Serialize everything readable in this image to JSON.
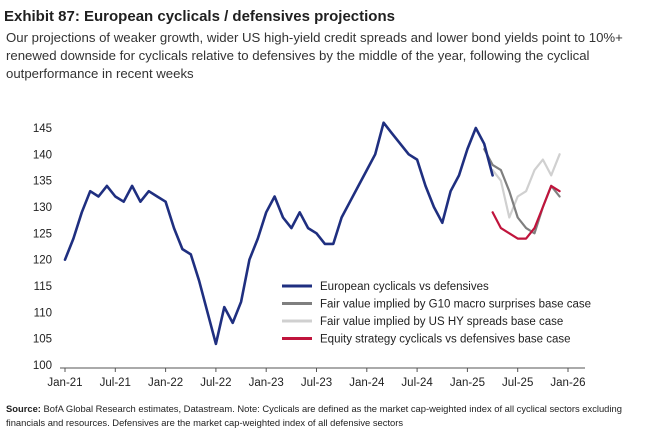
{
  "title": "Exhibit 87: European cyclicals / defensives projections",
  "subtitle": "Our projections of weaker growth, wider US high-yield credit spreads and lower bond yields point to 10%+ renewed downside for cyclicals relative to defensives by the middle of the year, following the cyclical outperformance in recent weeks",
  "source_label": "Source:",
  "source_text": "BofA Global Research estimates, Datastream. Note: Cyclicals are defined as the market cap-weighted index of all cyclical sectors excluding financials and resources. Defensives are the market cap-weighted index of all defensive sectors",
  "chart_data": {
    "type": "line",
    "title": "",
    "xlabel": "",
    "ylabel": "",
    "ylim": [
      100,
      145
    ],
    "yticks": [
      100,
      105,
      110,
      115,
      120,
      125,
      130,
      135,
      140,
      145
    ],
    "xticks": [
      "Jan-21",
      "Jul-21",
      "Jan-22",
      "Jul-22",
      "Jan-23",
      "Jul-23",
      "Jan-24",
      "Jul-24",
      "Jan-25",
      "Jul-25",
      "Jan-26"
    ],
    "grid": false,
    "legend_position": "bottom-right",
    "series": [
      {
        "name": "European cyclicals vs defensives",
        "color": "#1f2f80",
        "x": [
          "2021-01",
          "2021-02",
          "2021-03",
          "2021-04",
          "2021-05",
          "2021-06",
          "2021-07",
          "2021-08",
          "2021-09",
          "2021-10",
          "2021-11",
          "2021-12",
          "2022-01",
          "2022-02",
          "2022-03",
          "2022-04",
          "2022-05",
          "2022-06",
          "2022-07",
          "2022-08",
          "2022-09",
          "2022-10",
          "2022-11",
          "2022-12",
          "2023-01",
          "2023-02",
          "2023-03",
          "2023-04",
          "2023-05",
          "2023-06",
          "2023-07",
          "2023-08",
          "2023-09",
          "2023-10",
          "2023-11",
          "2023-12",
          "2024-01",
          "2024-02",
          "2024-03",
          "2024-04",
          "2024-05",
          "2024-06",
          "2024-07",
          "2024-08",
          "2024-09",
          "2024-10",
          "2024-11",
          "2024-12",
          "2025-01",
          "2025-02",
          "2025-03",
          "2025-04"
        ],
        "values": [
          120,
          124,
          129,
          133,
          132,
          134,
          132,
          131,
          134,
          131,
          133,
          132,
          131,
          126,
          122,
          121,
          116,
          110,
          104,
          111,
          108,
          112,
          120,
          124,
          129,
          132,
          128,
          126,
          129,
          126,
          125,
          123,
          123,
          128,
          131,
          134,
          137,
          140,
          146,
          144,
          142,
          140,
          139,
          134,
          130,
          127,
          133,
          136,
          141,
          145,
          142,
          136
        ]
      },
      {
        "name": "Fair value implied by G10 macro surprises base case",
        "color": "#7f7f7f",
        "x": [
          "2025-03",
          "2025-04",
          "2025-05",
          "2025-06",
          "2025-07",
          "2025-08",
          "2025-09",
          "2025-10",
          "2025-11",
          "2025-12"
        ],
        "values": [
          141,
          138,
          137,
          133,
          128,
          126,
          125,
          130,
          134,
          132
        ]
      },
      {
        "name": "Fair value implied by US HY spreads base case",
        "color": "#d0d0d0",
        "x": [
          "2025-04",
          "2025-05",
          "2025-06",
          "2025-07",
          "2025-08",
          "2025-09",
          "2025-10",
          "2025-11",
          "2025-12"
        ],
        "values": [
          137,
          135,
          128,
          132,
          133,
          137,
          139,
          136,
          140
        ]
      },
      {
        "name": "Equity strategy cyclicals vs defensives base case",
        "color": "#c0143c",
        "x": [
          "2025-04",
          "2025-05",
          "2025-06",
          "2025-07",
          "2025-08",
          "2025-09",
          "2025-10",
          "2025-11",
          "2025-12"
        ],
        "values": [
          129,
          126,
          125,
          124,
          124,
          126,
          130,
          134,
          133
        ]
      }
    ]
  }
}
